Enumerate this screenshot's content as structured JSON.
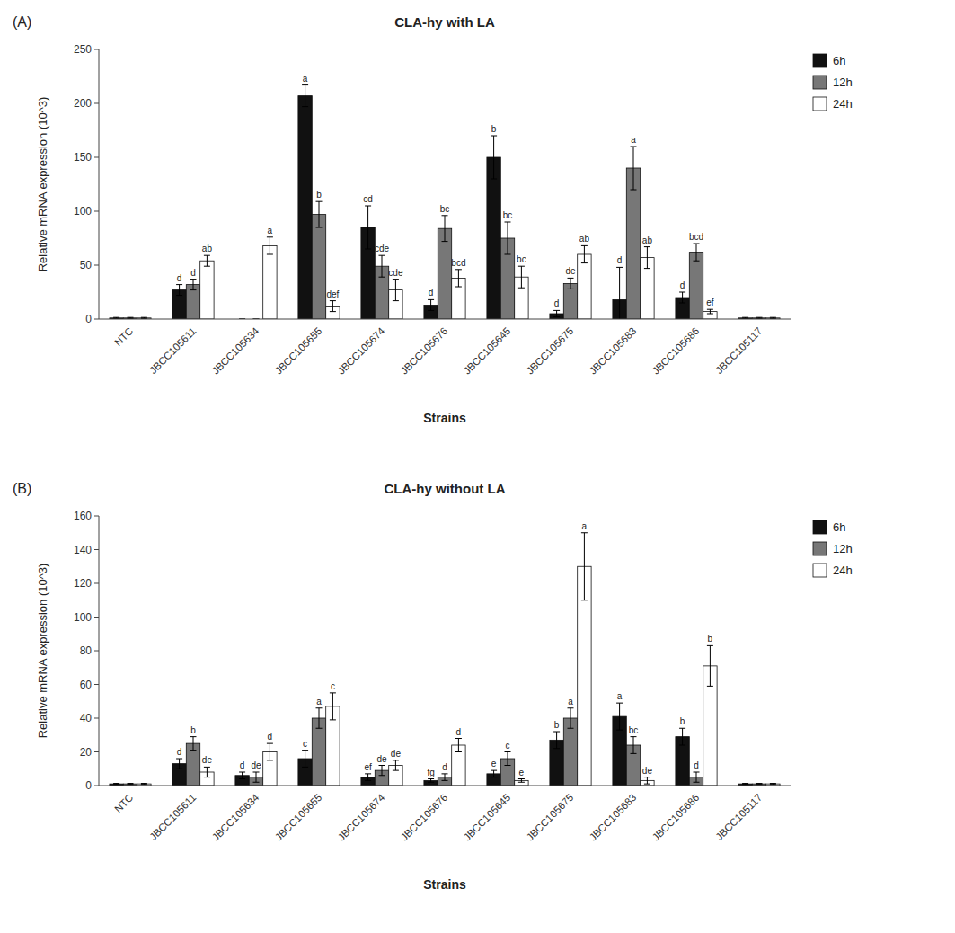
{
  "chart_data": [
    {
      "type": "bar",
      "title": "CLA-hy with LA",
      "annotations": [
        "(A)"
      ],
      "xlabel": "Strains",
      "ylabel": "Relative mRNA expression (10^3)",
      "categories": [
        "NTC",
        "JBCC105611",
        "JBCC105634",
        "JBCC105655",
        "JBCC105674",
        "JBCC105676",
        "JBCC105645",
        "JBCC105675",
        "JBCC105683",
        "JBCC105686",
        "JBCC105117"
      ],
      "series": [
        {
          "name": "6h",
          "color": "#111111",
          "values": [
            1,
            27,
            0,
            207,
            85,
            13,
            150,
            5,
            18,
            20,
            1
          ],
          "errors": [
            0.5,
            5,
            0,
            10,
            20,
            5,
            20,
            3,
            30,
            5,
            0.5
          ],
          "labels": [
            null,
            "d",
            null,
            "a",
            "cd",
            "d",
            "b",
            "d",
            "d",
            "d",
            null
          ]
        },
        {
          "name": "12h",
          "color": "#777777",
          "values": [
            1,
            32,
            0,
            97,
            49,
            84,
            75,
            33,
            140,
            62,
            1
          ],
          "errors": [
            0.5,
            5,
            0,
            12,
            10,
            12,
            15,
            5,
            20,
            8,
            0.5
          ],
          "labels": [
            null,
            "d",
            null,
            "b",
            "cde",
            "bc",
            "bc",
            "de",
            "a",
            "bcd",
            null
          ]
        },
        {
          "name": "24h",
          "color": "#ffffff",
          "values": [
            1,
            54,
            68,
            12,
            27,
            38,
            39,
            60,
            57,
            7,
            1
          ],
          "errors": [
            0.5,
            5,
            8,
            5,
            10,
            8,
            10,
            8,
            10,
            2,
            0.5
          ],
          "labels": [
            null,
            "ab",
            "a",
            "def",
            "cde",
            "bcd",
            "bc",
            "ab",
            "ab",
            "ef",
            null
          ]
        }
      ],
      "ylim": [
        0,
        250
      ],
      "yticks": [
        0,
        50,
        100,
        150,
        200,
        250
      ],
      "grid": false,
      "legend": "right"
    },
    {
      "type": "bar",
      "title": "CLA-hy without LA",
      "annotations": [
        "(B)"
      ],
      "xlabel": "Strains",
      "ylabel": "Relative mRNA expression (10^3)",
      "categories": [
        "NTC",
        "JBCC105611",
        "JBCC105634",
        "JBCC105655",
        "JBCC105674",
        "JBCC105676",
        "JBCC105645",
        "JBCC105675",
        "JBCC105683",
        "JBCC105686",
        "JBCC105117"
      ],
      "series": [
        {
          "name": "6h",
          "color": "#111111",
          "values": [
            1,
            13,
            6,
            16,
            5,
            3,
            7,
            27,
            41,
            29,
            1
          ],
          "errors": [
            0.3,
            3,
            2,
            5,
            2,
            1,
            2,
            5,
            8,
            5,
            0.3
          ],
          "labels": [
            null,
            "d",
            "d",
            "c",
            "ef",
            "fg",
            "e",
            "b",
            "a",
            "b",
            null
          ]
        },
        {
          "name": "12h",
          "color": "#777777",
          "values": [
            1,
            25,
            5,
            40,
            9,
            5,
            16,
            40,
            24,
            5,
            1
          ],
          "errors": [
            0.3,
            4,
            3,
            6,
            3,
            2,
            4,
            6,
            5,
            3,
            0.3
          ],
          "labels": [
            null,
            "b",
            "de",
            "a",
            "de",
            "d",
            "c",
            "a",
            "bc",
            "d",
            null
          ]
        },
        {
          "name": "24h",
          "color": "#ffffff",
          "values": [
            1,
            8,
            20,
            47,
            12,
            24,
            3,
            130,
            3,
            71,
            1
          ],
          "errors": [
            0.3,
            3,
            5,
            8,
            3,
            4,
            1,
            20,
            2,
            12,
            0.3
          ],
          "labels": [
            null,
            "de",
            "d",
            "c",
            "de",
            "d",
            "e",
            "a",
            "de",
            "b",
            null
          ]
        }
      ],
      "ylim": [
        0,
        160
      ],
      "yticks": [
        0,
        20,
        40,
        60,
        80,
        100,
        120,
        140,
        160
      ],
      "grid": false,
      "legend": "right"
    }
  ]
}
